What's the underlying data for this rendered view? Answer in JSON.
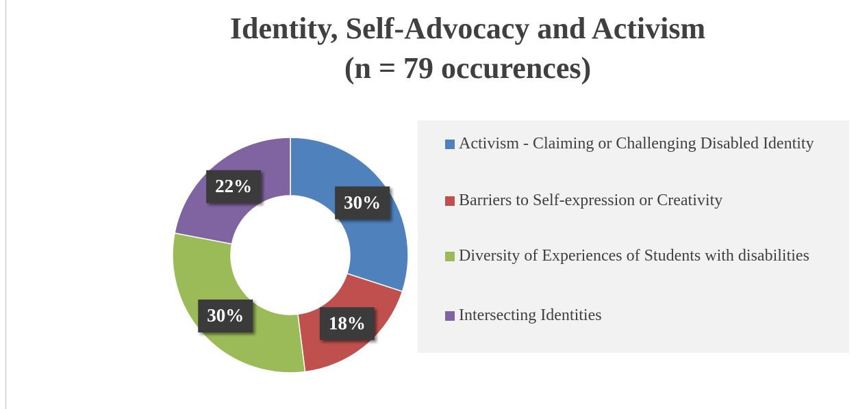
{
  "chart_data": {
    "type": "donut",
    "title": "Identity, Self-Advocacy and Activism",
    "subtitle": "(n = 79 occurences)",
    "categories": [
      "Activism - Claiming or Challenging Disabled Identity",
      "Barriers to Self-expression or Creativity",
      "Diversity of Experiences of Students with disabilities",
      "Intersecting Identities"
    ],
    "values": [
      30,
      18,
      30,
      22
    ],
    "value_labels": [
      "30%",
      "18%",
      "30%",
      "22%"
    ],
    "colors": [
      "#4f81bd",
      "#c0504d",
      "#9bbb59",
      "#8064a2"
    ],
    "legend": "right"
  }
}
